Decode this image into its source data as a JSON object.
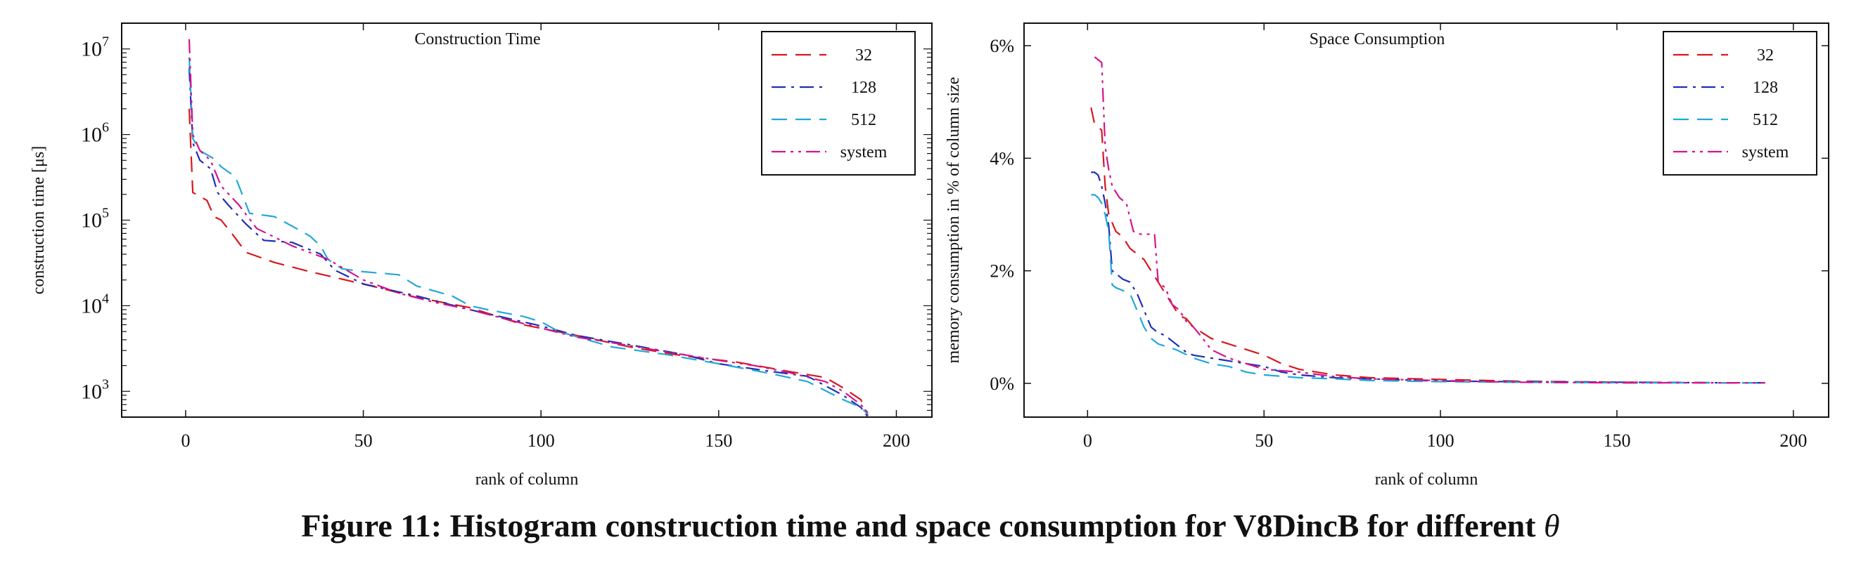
{
  "caption": {
    "text": "Figure 11: Histogram construction time and space consumption for V8DincB for different ",
    "symbol": "θ"
  },
  "chart_data": [
    {
      "type": "line",
      "title": "Construction Time",
      "xlabel": "rank of column",
      "ylabel": "construction time [μs]",
      "y_scale": "log",
      "xlim": [
        -18,
        210
      ],
      "ylim": [
        500,
        20000000
      ],
      "xticks": [
        0,
        50,
        100,
        150,
        200
      ],
      "xtick_labels": [
        "0",
        "50",
        "100",
        "150",
        "200"
      ],
      "yticks": [
        1000,
        10000,
        100000,
        1000000,
        10000000
      ],
      "ytick_labels": [
        {
          "base": "10",
          "exp": "3"
        },
        {
          "base": "10",
          "exp": "4"
        },
        {
          "base": "10",
          "exp": "5"
        },
        {
          "base": "10",
          "exp": "6"
        },
        {
          "base": "10",
          "exp": "7"
        }
      ],
      "grid": false,
      "legend_position": "top-right",
      "series": [
        {
          "name": "32",
          "color": "#d7191c",
          "dash": "dashed",
          "x": [
            1,
            2,
            3,
            6,
            8,
            10,
            13,
            17,
            25,
            35,
            45,
            55,
            65,
            80,
            95,
            110,
            125,
            140,
            155,
            170,
            180,
            185,
            190,
            192
          ],
          "y": [
            2000000,
            210000,
            200000,
            170000,
            110000,
            100000,
            70000,
            42000,
            32000,
            25000,
            20000,
            16000,
            12500,
            9500,
            6000,
            4500,
            3300,
            2600,
            2200,
            1700,
            1450,
            1100,
            800,
            520
          ]
        },
        {
          "name": "128",
          "color": "#1f2fb5",
          "dash": "dashdot",
          "x": [
            1,
            2,
            4,
            7,
            9,
            12,
            17,
            22,
            30,
            38,
            42,
            50,
            65,
            80,
            100,
            110,
            125,
            140,
            150,
            165,
            175,
            185,
            190,
            192
          ],
          "y": [
            6000000,
            800000,
            500000,
            400000,
            210000,
            150000,
            90000,
            58000,
            55000,
            40000,
            26000,
            18000,
            13000,
            9000,
            5800,
            4500,
            3500,
            2700,
            2100,
            1700,
            1500,
            900,
            650,
            500
          ]
        },
        {
          "name": "512",
          "color": "#22a8d9",
          "dash": "dashed",
          "x": [
            1,
            2,
            4,
            8,
            10,
            14,
            18,
            25,
            30,
            35,
            38,
            40,
            44,
            50,
            60,
            65,
            75,
            80,
            85,
            95,
            100,
            105,
            120,
            135,
            150,
            165,
            175,
            185,
            190,
            192
          ],
          "y": [
            8000000,
            900000,
            650000,
            520000,
            420000,
            320000,
            120000,
            110000,
            85000,
            65000,
            50000,
            35000,
            27000,
            25000,
            23000,
            17000,
            13000,
            10000,
            9000,
            7500,
            6500,
            5000,
            3300,
            2700,
            2100,
            1600,
            1300,
            800,
            650,
            540
          ]
        },
        {
          "name": "system",
          "color": "#d4148f",
          "dash": "dashdotdot",
          "x": [
            1,
            2,
            4,
            7,
            10,
            15,
            20,
            30,
            40,
            50,
            60,
            70,
            80,
            90,
            100,
            110,
            120,
            135,
            150,
            160,
            170,
            180,
            185,
            190,
            192
          ],
          "y": [
            13000000,
            1000000,
            650000,
            500000,
            250000,
            150000,
            80000,
            50000,
            35000,
            20000,
            14000,
            11000,
            9000,
            7000,
            5500,
            4300,
            3700,
            2900,
            2300,
            2000,
            1650,
            1300,
            1000,
            700,
            560
          ]
        }
      ]
    },
    {
      "type": "line",
      "title": "Space Consumption",
      "xlabel": "rank of column",
      "ylabel": "memory consumption in % of column size",
      "xlim": [
        -18,
        210
      ],
      "ylim": [
        -0.6,
        6.4
      ],
      "xticks": [
        0,
        50,
        100,
        150,
        200
      ],
      "xtick_labels": [
        "0",
        "50",
        "100",
        "150",
        "200"
      ],
      "yticks": [
        0,
        2,
        4,
        6
      ],
      "ytick_labels": [
        "0%",
        "2%",
        "4%",
        "6%"
      ],
      "grid": false,
      "legend_position": "top-right",
      "series": [
        {
          "name": "32",
          "color": "#d7191c",
          "dash": "dashed",
          "x": [
            1,
            2,
            3,
            4,
            5,
            6,
            8,
            10,
            12,
            14,
            16,
            18,
            20,
            22,
            24,
            26,
            28,
            30,
            35,
            40,
            45,
            50,
            55,
            60,
            70,
            80,
            100,
            120,
            150,
            180,
            192
          ],
          "y": [
            4.9,
            4.6,
            4.55,
            4.5,
            3.5,
            3.0,
            2.7,
            2.6,
            2.4,
            2.3,
            2.2,
            2.0,
            1.8,
            1.6,
            1.4,
            1.2,
            1.15,
            1.0,
            0.8,
            0.7,
            0.6,
            0.5,
            0.35,
            0.25,
            0.15,
            0.1,
            0.07,
            0.04,
            0.02,
            0.01,
            0.01
          ]
        },
        {
          "name": "128",
          "color": "#1f2fb5",
          "dash": "dashdot",
          "x": [
            1,
            2,
            3,
            4,
            5,
            6,
            7,
            8,
            10,
            12,
            14,
            16,
            18,
            20,
            22,
            25,
            28,
            30,
            35,
            40,
            45,
            50,
            55,
            60,
            70,
            80,
            100,
            120,
            150,
            180,
            192
          ],
          "y": [
            3.75,
            3.75,
            3.7,
            3.5,
            3.2,
            2.8,
            2.0,
            1.95,
            1.85,
            1.8,
            1.6,
            1.3,
            1.0,
            0.9,
            0.85,
            0.7,
            0.55,
            0.5,
            0.45,
            0.4,
            0.35,
            0.3,
            0.2,
            0.15,
            0.1,
            0.08,
            0.04,
            0.03,
            0.02,
            0.01,
            0.01
          ]
        },
        {
          "name": "512",
          "color": "#22a8d9",
          "dash": "dashed",
          "x": [
            1,
            2,
            3,
            4,
            5,
            6,
            7,
            8,
            10,
            12,
            14,
            16,
            18,
            20,
            25,
            30,
            35,
            40,
            45,
            50,
            60,
            70,
            80,
            100,
            120,
            150,
            180,
            192
          ],
          "y": [
            3.35,
            3.35,
            3.3,
            3.2,
            3.0,
            2.7,
            1.75,
            1.7,
            1.65,
            1.6,
            1.3,
            1.0,
            0.8,
            0.7,
            0.6,
            0.45,
            0.35,
            0.3,
            0.2,
            0.15,
            0.1,
            0.08,
            0.05,
            0.03,
            0.02,
            0.01,
            0.01,
            0.01
          ]
        },
        {
          "name": "system",
          "color": "#d4148f",
          "dash": "dashdotdot",
          "x": [
            2,
            3,
            4,
            5,
            6,
            7,
            9,
            11,
            13,
            15,
            17,
            19,
            20,
            22,
            24,
            26,
            28,
            30,
            32,
            35,
            40,
            45,
            50,
            60,
            70,
            80,
            100,
            120,
            150,
            180,
            192
          ],
          "y": [
            5.8,
            5.75,
            5.7,
            4.2,
            3.8,
            3.5,
            3.3,
            3.2,
            2.7,
            2.65,
            2.65,
            2.65,
            1.8,
            1.7,
            1.4,
            1.3,
            1.1,
            1.0,
            0.85,
            0.6,
            0.45,
            0.35,
            0.25,
            0.2,
            0.12,
            0.08,
            0.05,
            0.02,
            0.01,
            0.01,
            0.01
          ]
        }
      ]
    }
  ]
}
